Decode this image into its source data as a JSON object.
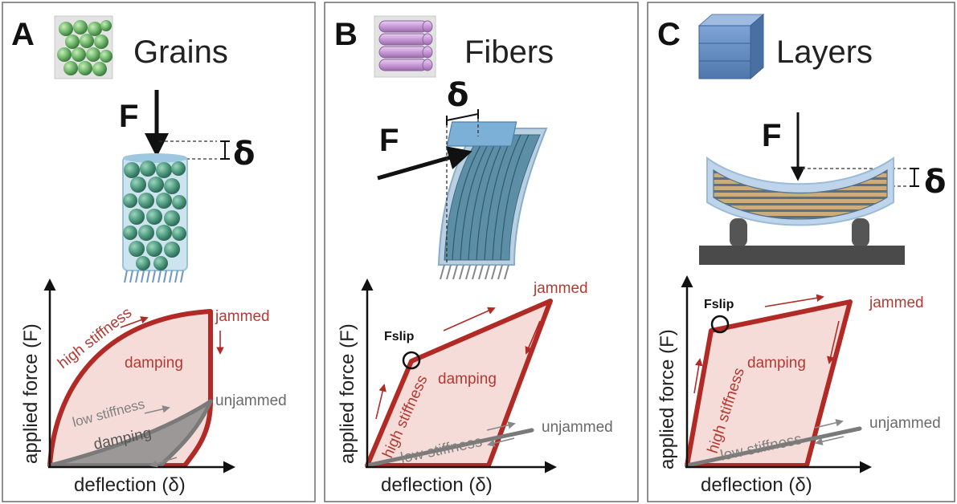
{
  "panels": [
    {
      "letter": "A",
      "title": "Grains",
      "force_label": "F",
      "delta_label": "δ",
      "xlabel": "deflection (δ)",
      "ylabel": "applied force (F)",
      "labels": {
        "jammed": "jammed",
        "unjammed": "unjammed",
        "high_stiffness": "high stiffness",
        "low_stiffness": "low stiffness",
        "damping_red": "damping",
        "damping_gray": "damping"
      }
    },
    {
      "letter": "B",
      "title": "Fibers",
      "force_label": "F",
      "delta_label": "δ",
      "xlabel": "deflection (δ)",
      "ylabel": "applied force (F)",
      "labels": {
        "jammed": "jammed",
        "unjammed": "unjammed",
        "high_stiffness": "high stiffness",
        "low_stiffness": "low stiffness",
        "damping": "damping",
        "fslip": "Fslip"
      }
    },
    {
      "letter": "C",
      "title": "Layers",
      "force_label": "F",
      "delta_label": "δ",
      "xlabel": "deflection (δ)",
      "ylabel": "applied force (F)",
      "labels": {
        "jammed": "jammed",
        "unjammed": "unjammed",
        "high_stiffness": "high stiffness",
        "low_stiffness": "low stiffness",
        "damping": "damping",
        "fslip": "Fslip"
      }
    }
  ],
  "colors": {
    "jammed_stroke": "#b22a25",
    "jammed_fill": "#f6dcd8",
    "unjammed": "#7a7a7a",
    "grain": "#4e9a7f",
    "fiber_block": "#c79ad6",
    "layer_block": "#5f87bd"
  }
}
